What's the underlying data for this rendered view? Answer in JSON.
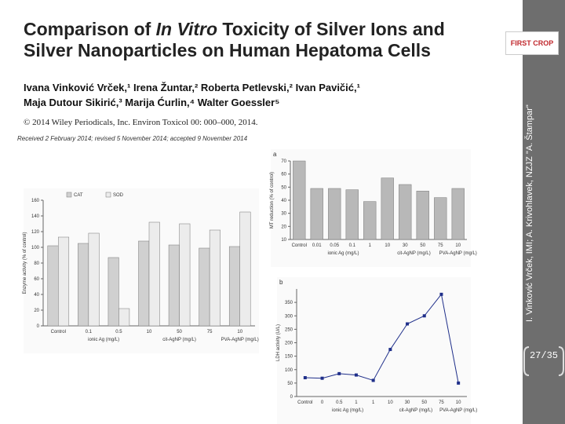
{
  "header": {
    "title_line1_a": "Comparison of ",
    "title_line1_i": "In Vitro",
    "title_line1_b": " Toxicity of Silver Ions and",
    "title_line2": "Silver Nanoparticles on Human Hepatoma Cells",
    "authors_line1": "Ivana Vinković Vrček,¹ Irena Žuntar,² Roberta Petlevski,² Ivan Pavičić,¹",
    "authors_line2": "Maja Dutour Sikirić,³ Marija Ćurlin,⁴ Walter Goessler⁵",
    "copyright": "© 2014 Wiley Periodicals, Inc. Environ Toxicol 00: 000–000, 2014.",
    "received": "Received 2 February 2014; revised 5 November 2014; accepted 9 November 2014"
  },
  "sidebar": {
    "credit": "I. Vinković Vrček, IMI; A. Krivohlavek, NZJZ \"A. Štampar\"",
    "page": "27/35",
    "logo_a": "FIRST",
    "logo_b": "CROP"
  },
  "chart_data": [
    {
      "type": "bar",
      "ylabel": "Enzyme activity (% of control)",
      "categories": [
        "Control",
        "0.1",
        "0.5",
        "10",
        "50",
        "75",
        "10"
      ],
      "groups": [
        "ionic Ag (mg/L)",
        "cit-AgNP (mg/L)",
        "PVA-AgNP (mg/L)"
      ],
      "series": [
        {
          "name": "CAT",
          "color": "#d0d0d0",
          "values": [
            102,
            105,
            87,
            108,
            103,
            99,
            101
          ]
        },
        {
          "name": "SOD",
          "color": "#ececec",
          "values": [
            113,
            118,
            22,
            132,
            130,
            122,
            145
          ]
        }
      ],
      "ylim": [
        0,
        160
      ],
      "yticks": [
        0,
        20,
        40,
        60,
        80,
        100,
        120,
        140,
        160
      ]
    },
    {
      "type": "bar",
      "panel": "a",
      "ylabel": "MT reduction (% of control)",
      "categories": [
        "Control",
        "0.01",
        "0.05",
        "0.1",
        "1",
        "10",
        "30",
        "50",
        "75",
        "10"
      ],
      "groups": [
        "ionic Ag (mg/L)",
        "cit-AgNP (mg/L)",
        "PVA-AgNP (mg/L)"
      ],
      "values": [
        70,
        49,
        49,
        48,
        39,
        57,
        52,
        47,
        42,
        49
      ],
      "color": "#b8b8b8",
      "ylim": [
        10,
        70
      ],
      "yticks": [
        10,
        20,
        30,
        40,
        50,
        60,
        70
      ]
    },
    {
      "type": "line",
      "panel": "b",
      "ylabel": "LDH activity (U/L)",
      "categories": [
        "Control",
        "0",
        "0.5",
        "1",
        "1",
        "10",
        "30",
        "50",
        "75",
        "10"
      ],
      "groups": [
        "ionic Ag (mg/L)",
        "cit-AgNP (mg/L)",
        "PVA-AgNP (mg/L)"
      ],
      "values": [
        70,
        68,
        85,
        80,
        60,
        175,
        270,
        300,
        380,
        50
      ],
      "color": "#1f2f8a",
      "ylim": [
        0,
        400
      ],
      "yticks": [
        0,
        50,
        100,
        150,
        200,
        250,
        300,
        350
      ]
    }
  ]
}
